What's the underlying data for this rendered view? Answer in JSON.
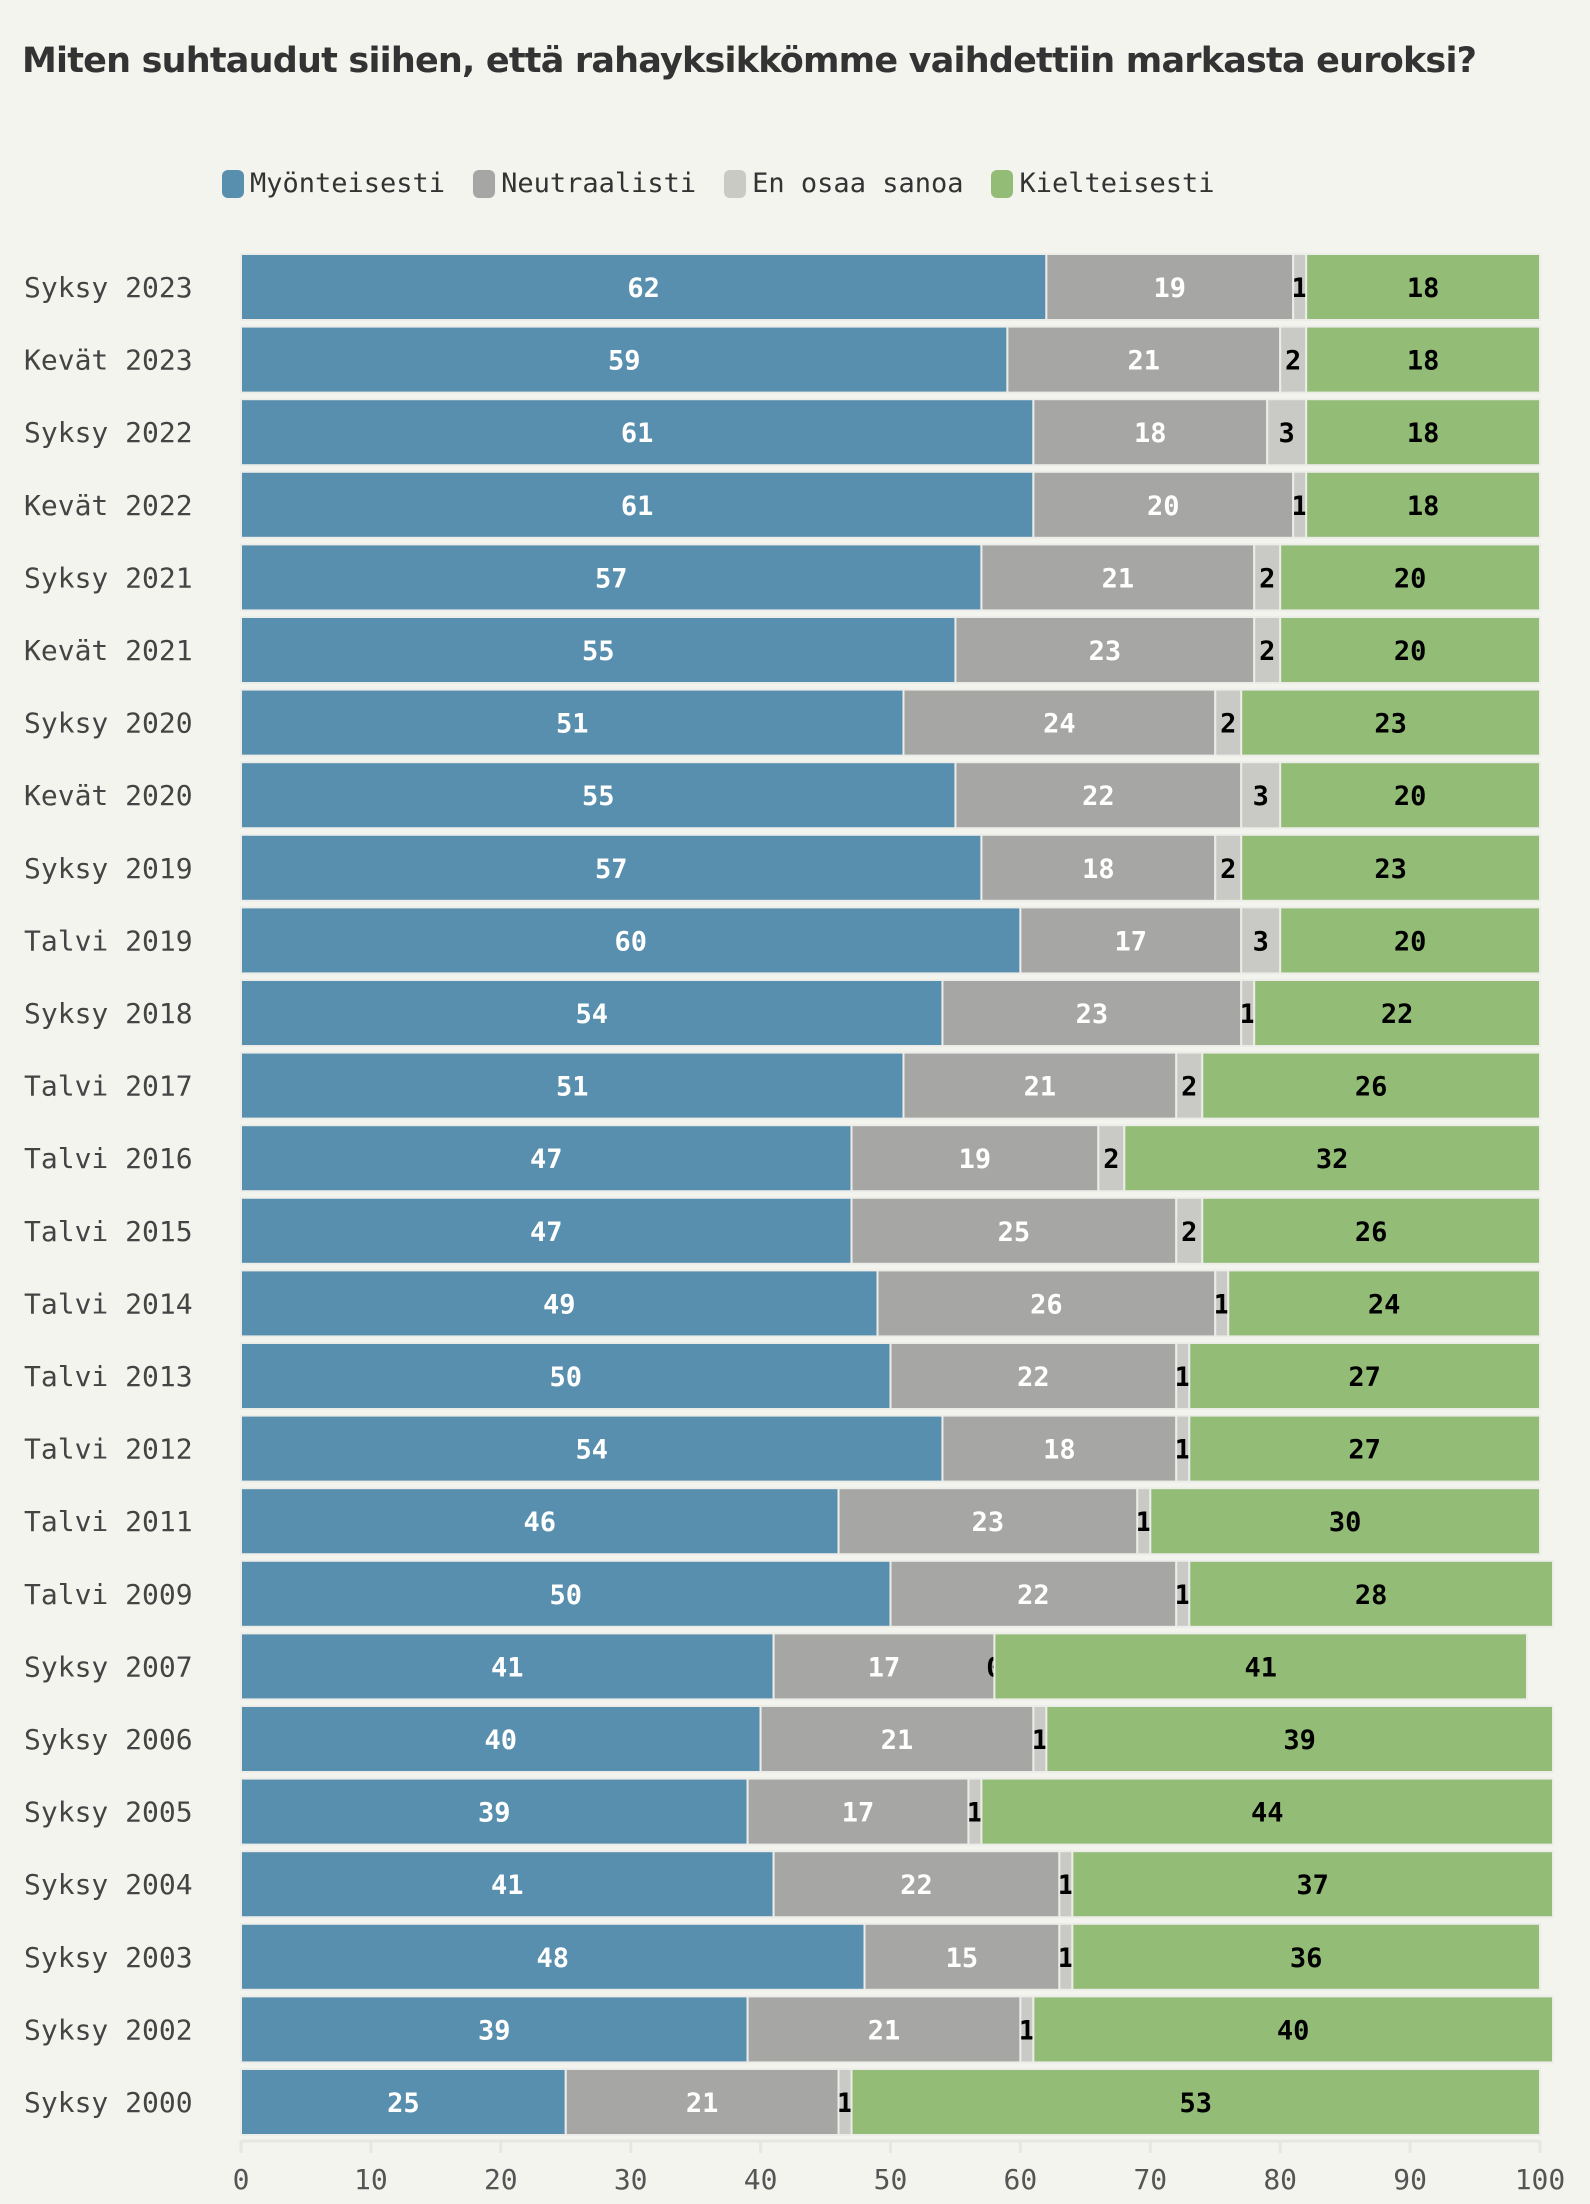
{
  "chart_data": {
    "type": "bar",
    "orientation": "horizontal",
    "stacked": true,
    "title": "Miten suhtaudut siihen, että rahayksikkömme vaihdettiin markasta euroksi?",
    "xlabel": "",
    "ylabel": "",
    "xlim": [
      0,
      100
    ],
    "xticks": [
      "0",
      "10",
      "20",
      "30",
      "40",
      "50",
      "60",
      "70",
      "80",
      "90",
      "100"
    ],
    "legend_position": "top",
    "grid": false,
    "categories": [
      "Syksy 2023",
      "Kevät 2023",
      "Syksy 2022",
      "Kevät 2022",
      "Syksy 2021",
      "Kevät 2021",
      "Syksy 2020",
      "Kevät 2020",
      "Syksy 2019",
      "Talvi 2019",
      "Syksy 2018",
      "Talvi 2017",
      "Talvi 2016",
      "Talvi 2015",
      "Talvi 2014",
      "Talvi 2013",
      "Talvi 2012",
      "Talvi 2011",
      "Talvi 2009",
      "Syksy 2007",
      "Syksy 2006",
      "Syksy 2005",
      "Syksy 2004",
      "Syksy 2003",
      "Syksy 2002",
      "Syksy 2000"
    ],
    "series": [
      {
        "name": "Myönteisesti",
        "color": "#588fae",
        "label_color": "#ffffff",
        "values": [
          62,
          59,
          61,
          61,
          57,
          55,
          51,
          55,
          57,
          60,
          54,
          51,
          47,
          47,
          49,
          50,
          54,
          46,
          50,
          41,
          40,
          39,
          41,
          48,
          39,
          25
        ]
      },
      {
        "name": "Neutraalisti",
        "color": "#a6a6a4",
        "label_color": "#ffffff",
        "values": [
          19,
          21,
          18,
          20,
          21,
          23,
          24,
          22,
          18,
          17,
          23,
          21,
          19,
          25,
          26,
          22,
          18,
          23,
          22,
          17,
          21,
          17,
          22,
          15,
          21,
          21
        ]
      },
      {
        "name": "En osaa sanoa",
        "color": "#c9c9c6",
        "label_color": "#000000",
        "values": [
          1,
          2,
          3,
          1,
          2,
          2,
          2,
          3,
          2,
          3,
          1,
          2,
          2,
          2,
          1,
          1,
          1,
          1,
          1,
          0,
          1,
          1,
          1,
          1,
          1,
          1
        ]
      },
      {
        "name": "Kielteisesti",
        "color": "#93bc76",
        "label_color": "#000000",
        "values": [
          18,
          18,
          18,
          18,
          20,
          20,
          23,
          20,
          23,
          20,
          22,
          26,
          32,
          26,
          24,
          27,
          27,
          30,
          28,
          41,
          39,
          44,
          37,
          36,
          40,
          53
        ]
      }
    ]
  }
}
